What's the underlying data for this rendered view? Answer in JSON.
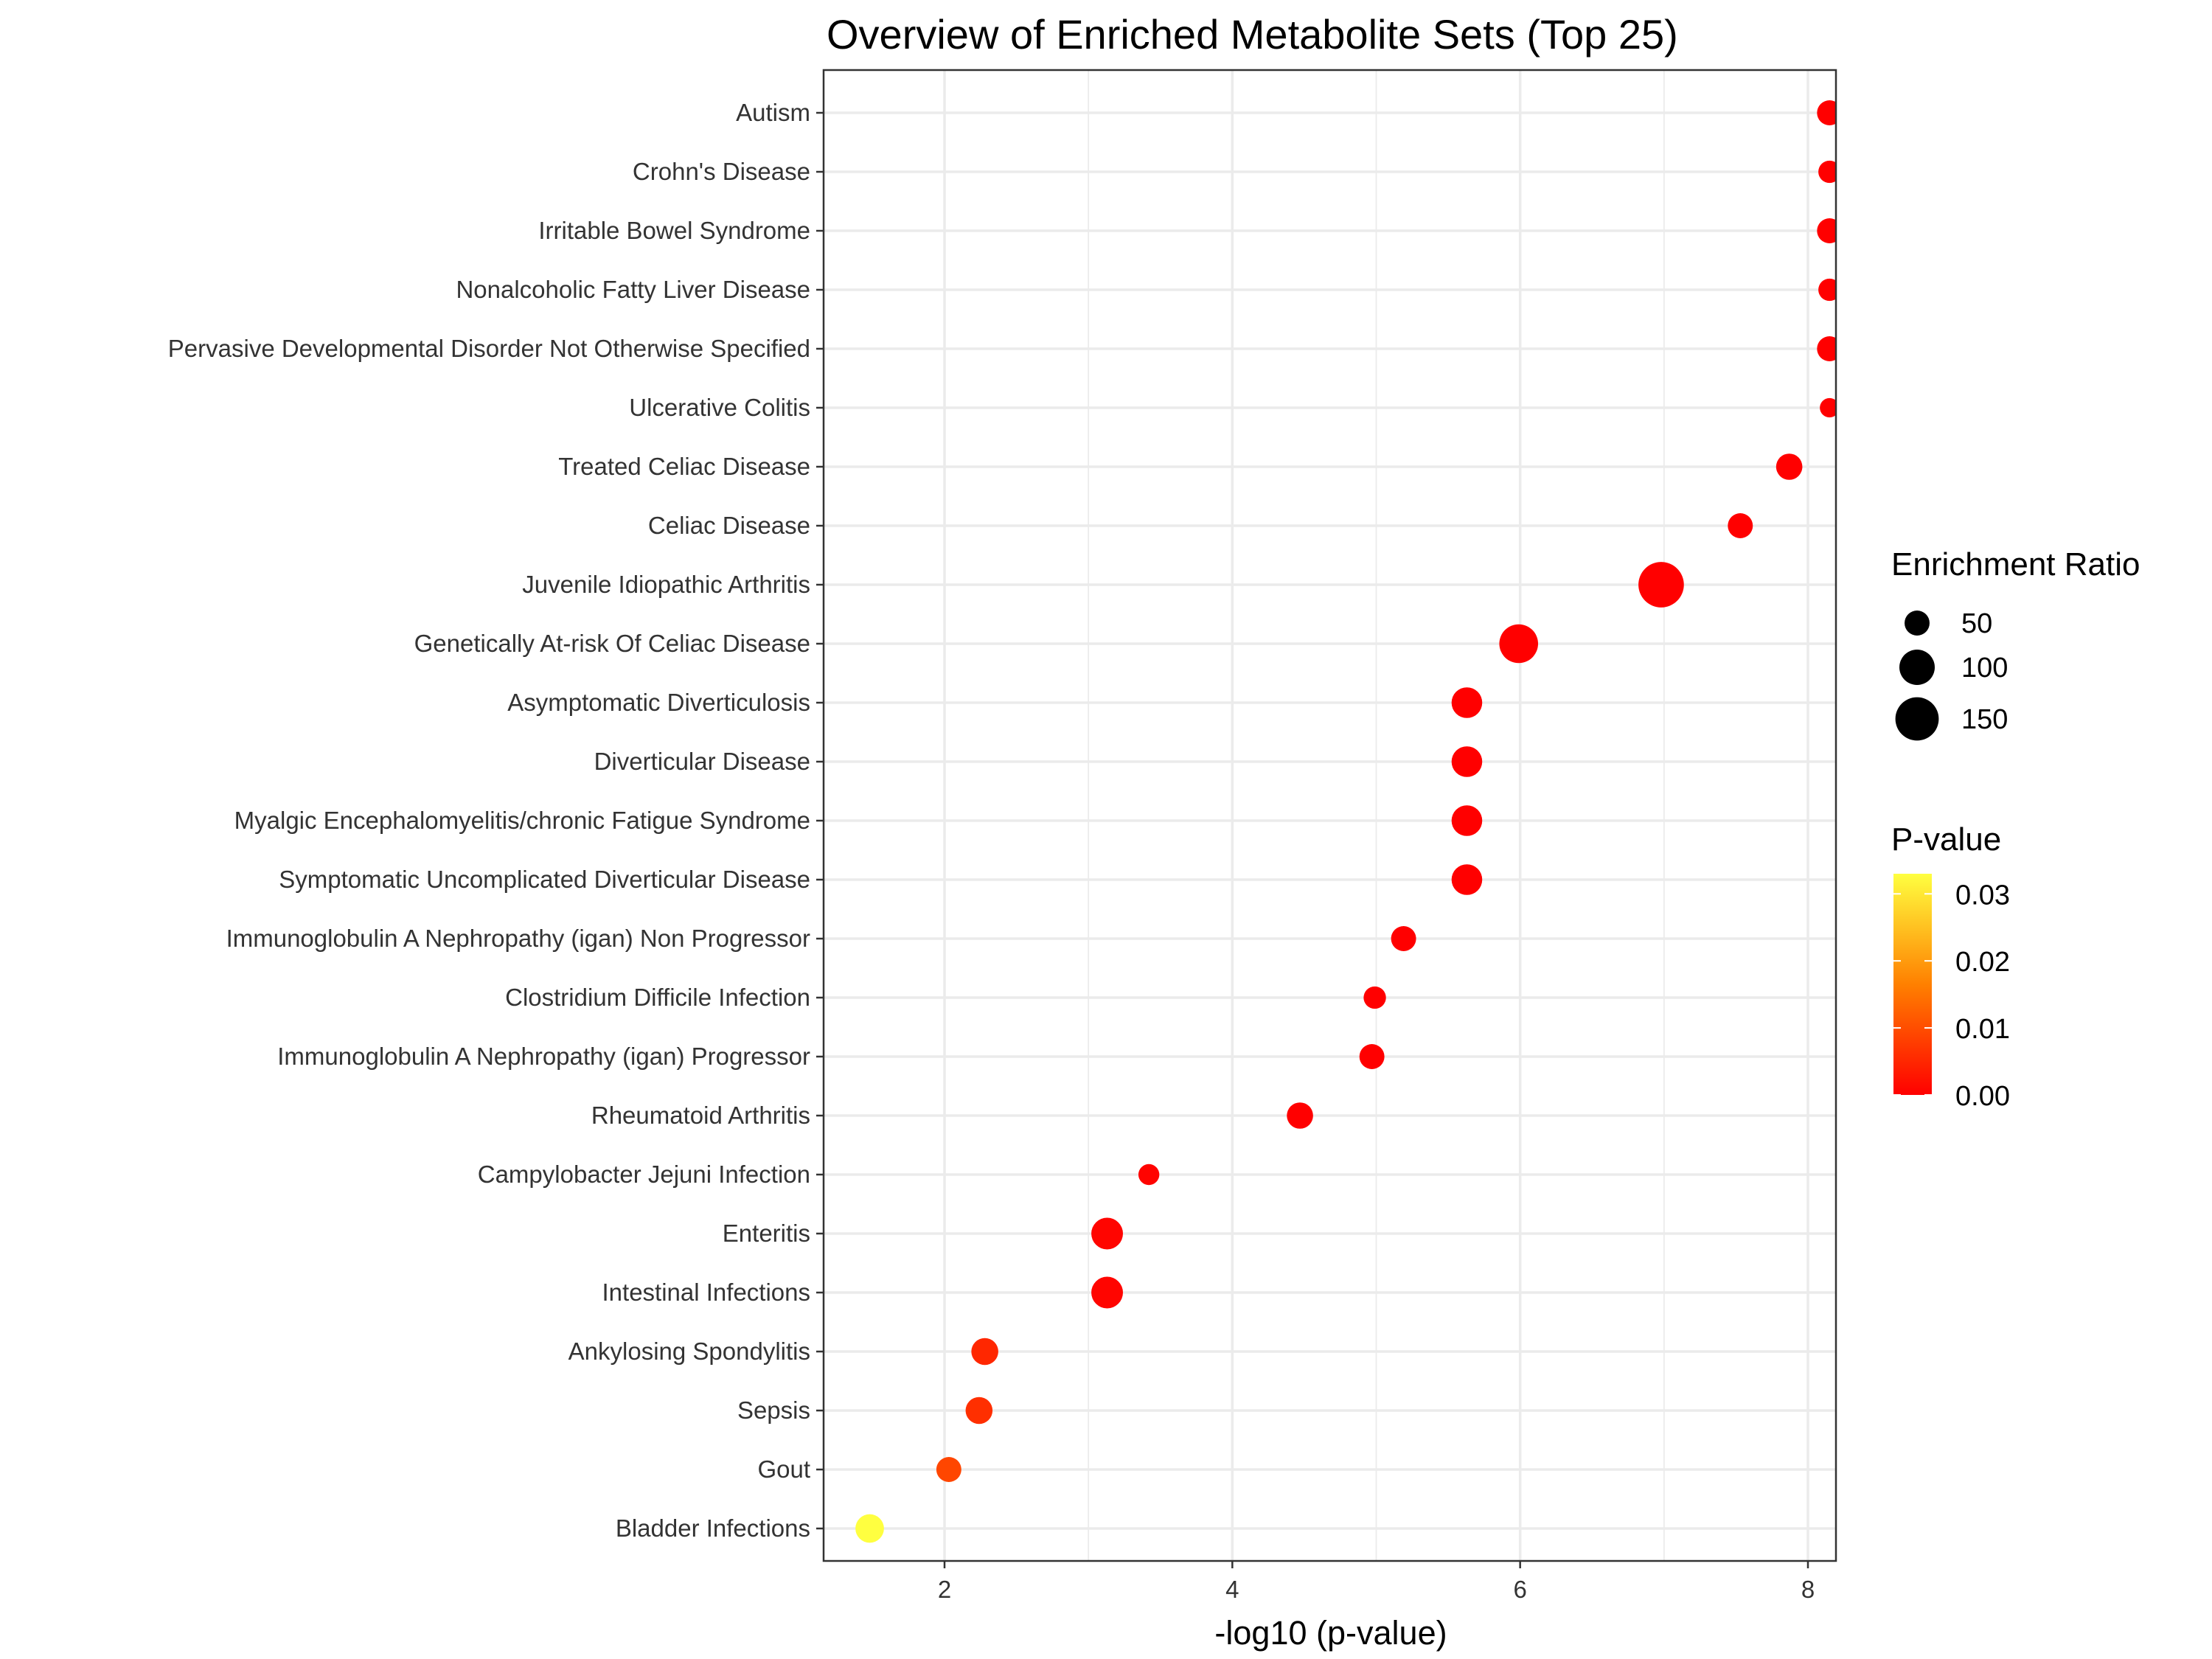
{
  "chart_data": {
    "type": "scatter",
    "title": "Overview of Enriched Metabolite Sets (Top 25)",
    "xlabel": "-log10 (p-value)",
    "ylabel": "",
    "xlim": [
      1.2,
      8.2
    ],
    "x_ticks": [
      2,
      4,
      6,
      8
    ],
    "grid": true,
    "legend_placement": "right",
    "colors": {
      "low": "#FF0000",
      "mid": "#FF8000",
      "high": "#FFFF40",
      "point_default": "#FF0000",
      "panel_border": "#333333",
      "grid": "#EBEBEB"
    },
    "size_legend": {
      "title": "Enrichment Ratio",
      "values": [
        50,
        100,
        150
      ]
    },
    "color_legend": {
      "title": "P-value",
      "ticks": [
        "0.00",
        "0.01",
        "0.02",
        "0.03"
      ],
      "range": [
        0,
        0.033
      ]
    },
    "points": [
      {
        "label": "Autism",
        "x": 8.15,
        "ratio": 50,
        "pvalue": 0.0
      },
      {
        "label": "Crohn's Disease",
        "x": 8.15,
        "ratio": 40,
        "pvalue": 0.0
      },
      {
        "label": "Irritable Bowel Syndrome",
        "x": 8.15,
        "ratio": 50,
        "pvalue": 0.0
      },
      {
        "label": "Nonalcoholic Fatty Liver Disease",
        "x": 8.15,
        "ratio": 40,
        "pvalue": 0.0
      },
      {
        "label": "Pervasive Developmental Disorder Not Otherwise Specified",
        "x": 8.15,
        "ratio": 50,
        "pvalue": 0.0
      },
      {
        "label": "Ulcerative Colitis",
        "x": 8.15,
        "ratio": 30,
        "pvalue": 0.0
      },
      {
        "label": "Treated Celiac Disease",
        "x": 7.87,
        "ratio": 55,
        "pvalue": 0.0
      },
      {
        "label": "Celiac Disease",
        "x": 7.53,
        "ratio": 50,
        "pvalue": 0.0
      },
      {
        "label": "Juvenile Idiopathic Arthritis",
        "x": 6.98,
        "ratio": 165,
        "pvalue": 0.0
      },
      {
        "label": "Genetically At-risk Of Celiac Disease",
        "x": 5.99,
        "ratio": 120,
        "pvalue": 0.0
      },
      {
        "label": "Asymptomatic Diverticulosis",
        "x": 5.63,
        "ratio": 75,
        "pvalue": 0.0
      },
      {
        "label": "Diverticular Disease",
        "x": 5.63,
        "ratio": 75,
        "pvalue": 0.0
      },
      {
        "label": "Myalgic Encephalomyelitis/chronic Fatigue Syndrome",
        "x": 5.63,
        "ratio": 75,
        "pvalue": 0.0
      },
      {
        "label": "Symptomatic Uncomplicated Diverticular Disease",
        "x": 5.63,
        "ratio": 75,
        "pvalue": 0.0
      },
      {
        "label": "Immunoglobulin A Nephropathy (igan) Non Progressor",
        "x": 5.19,
        "ratio": 50,
        "pvalue": 0.0
      },
      {
        "label": "Clostridium Difficile Infection",
        "x": 4.99,
        "ratio": 40,
        "pvalue": 0.0
      },
      {
        "label": "Immunoglobulin A Nephropathy (igan) Progressor",
        "x": 4.97,
        "ratio": 50,
        "pvalue": 0.0
      },
      {
        "label": "Rheumatoid Arthritis",
        "x": 4.47,
        "ratio": 55,
        "pvalue": 0.0
      },
      {
        "label": "Campylobacter Jejuni Infection",
        "x": 3.42,
        "ratio": 35,
        "pvalue": 0.0004
      },
      {
        "label": "Enteritis",
        "x": 3.13,
        "ratio": 80,
        "pvalue": 0.0007
      },
      {
        "label": "Intestinal Infections",
        "x": 3.13,
        "ratio": 80,
        "pvalue": 0.0007
      },
      {
        "label": "Ankylosing Spondylitis",
        "x": 2.28,
        "ratio": 58,
        "pvalue": 0.005
      },
      {
        "label": "Sepsis",
        "x": 2.24,
        "ratio": 58,
        "pvalue": 0.006
      },
      {
        "label": "Gout",
        "x": 2.03,
        "ratio": 50,
        "pvalue": 0.009
      },
      {
        "label": "Bladder Infections",
        "x": 1.48,
        "ratio": 65,
        "pvalue": 0.033
      }
    ]
  }
}
